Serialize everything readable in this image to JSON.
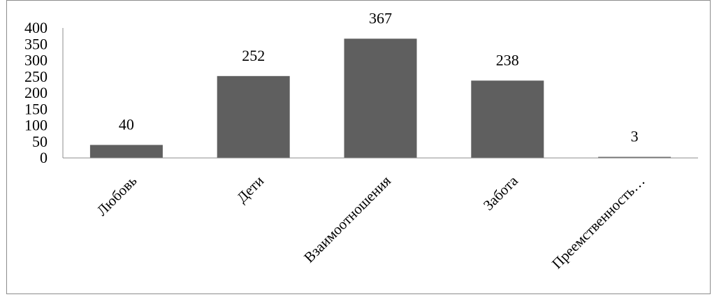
{
  "chart_data": {
    "type": "bar",
    "title": "",
    "xlabel": "",
    "ylabel": "",
    "categories": [
      "Любовь",
      "Дети",
      "Взаимоотношения",
      "Забота",
      "Преемственность…"
    ],
    "values": [
      40,
      252,
      367,
      238,
      3
    ],
    "data_labels": [
      "40",
      "252",
      "367",
      "238",
      "3"
    ],
    "ylim": [
      0,
      400
    ],
    "yticks": [
      0,
      50,
      100,
      150,
      200,
      250,
      300,
      350,
      400
    ],
    "grid": false,
    "legend": "none",
    "colors": {
      "bar": "#5f5f5f",
      "axis": "#8c8c8c",
      "text": "#000000",
      "border": "#8c8c8c"
    }
  }
}
